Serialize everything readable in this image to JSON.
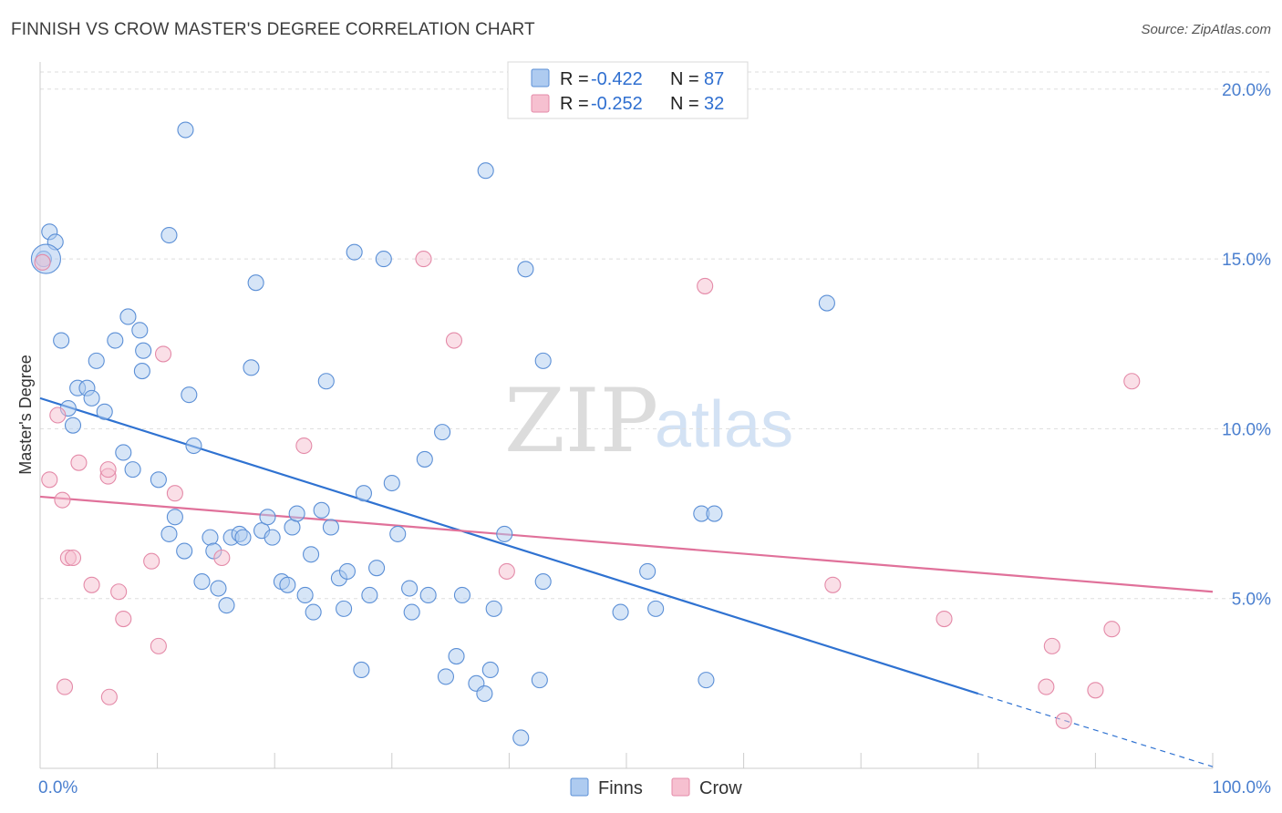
{
  "title": "FINNISH VS CROW MASTER'S DEGREE CORRELATION CHART",
  "source": "Source: ZipAtlas.com",
  "watermark": {
    "zip": "ZIP",
    "atlas": "atlas"
  },
  "colors": {
    "finns_fill": "#aecbf0",
    "finns_stroke": "#5b8fd6",
    "finns_line": "#2f72d1",
    "crow_fill": "#f6c0d0",
    "crow_stroke": "#e48aa8",
    "crow_line": "#e0719a",
    "grid": "#dddddd",
    "tick_label": "#4a7fcf"
  },
  "legend": {
    "rows": [
      {
        "series": "Finns",
        "r_label": "R = ",
        "r_value": "-0.422",
        "n_label": "N = ",
        "n_value": "87"
      },
      {
        "series": "Crow",
        "r_label": "R = ",
        "r_value": "-0.252",
        "n_label": "N = ",
        "n_value": "32"
      }
    ]
  },
  "chart_data": {
    "type": "scatter",
    "title": "FINNISH VS CROW MASTER'S DEGREE CORRELATION CHART",
    "xlabel": "",
    "ylabel": "Master's Degree",
    "xlim": [
      0,
      100
    ],
    "ylim": [
      0,
      20.8
    ],
    "x_tick_labels": [
      "0.0%",
      "100.0%"
    ],
    "y_ticks": [
      5,
      10,
      15,
      20
    ],
    "y_tick_labels": [
      "5.0%",
      "10.0%",
      "15.0%",
      "20.0%"
    ],
    "grid": "horizontal dashed",
    "legend_position": "top-center",
    "series": [
      {
        "name": "Finns",
        "points": [
          [
            0.3,
            15.0
          ],
          [
            0.8,
            15.8
          ],
          [
            1.3,
            15.5
          ],
          [
            1.8,
            12.6
          ],
          [
            3.2,
            11.2
          ],
          [
            4.0,
            11.2
          ],
          [
            2.4,
            10.6
          ],
          [
            2.8,
            10.1
          ],
          [
            4.4,
            10.9
          ],
          [
            5.5,
            10.5
          ],
          [
            4.8,
            12.0
          ],
          [
            6.4,
            12.6
          ],
          [
            7.5,
            13.3
          ],
          [
            8.5,
            12.9
          ],
          [
            8.8,
            12.3
          ],
          [
            8.7,
            11.7
          ],
          [
            12.4,
            18.8
          ],
          [
            11.0,
            15.7
          ],
          [
            7.1,
            9.3
          ],
          [
            7.9,
            8.8
          ],
          [
            10.1,
            8.5
          ],
          [
            12.7,
            11.0
          ],
          [
            13.1,
            9.5
          ],
          [
            14.5,
            6.8
          ],
          [
            11.0,
            6.9
          ],
          [
            11.5,
            7.4
          ],
          [
            12.3,
            6.4
          ],
          [
            13.8,
            5.5
          ],
          [
            15.2,
            5.3
          ],
          [
            15.9,
            4.8
          ],
          [
            14.8,
            6.4
          ],
          [
            16.3,
            6.8
          ],
          [
            17.0,
            6.9
          ],
          [
            17.3,
            6.8
          ],
          [
            18.0,
            11.8
          ],
          [
            18.4,
            14.3
          ],
          [
            18.9,
            7.0
          ],
          [
            19.4,
            7.4
          ],
          [
            19.8,
            6.8
          ],
          [
            20.6,
            5.5
          ],
          [
            21.1,
            5.4
          ],
          [
            21.5,
            7.1
          ],
          [
            21.9,
            7.5
          ],
          [
            22.6,
            5.1
          ],
          [
            23.1,
            6.3
          ],
          [
            23.3,
            4.6
          ],
          [
            24.0,
            7.6
          ],
          [
            24.4,
            11.4
          ],
          [
            24.8,
            7.1
          ],
          [
            25.5,
            5.6
          ],
          [
            25.9,
            4.7
          ],
          [
            26.2,
            5.8
          ],
          [
            26.8,
            15.2
          ],
          [
            27.4,
            2.9
          ],
          [
            27.6,
            8.1
          ],
          [
            28.1,
            5.1
          ],
          [
            28.7,
            5.9
          ],
          [
            29.3,
            15.0
          ],
          [
            30.0,
            8.4
          ],
          [
            30.5,
            6.9
          ],
          [
            31.5,
            5.3
          ],
          [
            31.7,
            4.6
          ],
          [
            32.8,
            9.1
          ],
          [
            33.1,
            5.1
          ],
          [
            34.3,
            9.9
          ],
          [
            34.6,
            2.7
          ],
          [
            35.5,
            3.3
          ],
          [
            36.0,
            5.1
          ],
          [
            37.2,
            2.5
          ],
          [
            37.9,
            2.2
          ],
          [
            38.0,
            17.6
          ],
          [
            38.4,
            2.9
          ],
          [
            38.7,
            4.7
          ],
          [
            39.6,
            6.9
          ],
          [
            41.0,
            0.9
          ],
          [
            41.4,
            14.7
          ],
          [
            42.6,
            2.6
          ],
          [
            42.9,
            5.5
          ],
          [
            42.9,
            12.0
          ],
          [
            49.5,
            4.6
          ],
          [
            51.8,
            5.8
          ],
          [
            52.5,
            4.7
          ],
          [
            56.4,
            7.5
          ],
          [
            56.8,
            2.6
          ],
          [
            57.5,
            7.5
          ],
          [
            67.1,
            13.7
          ],
          [
            0.5,
            15.0
          ]
        ]
      },
      {
        "name": "Crow",
        "points": [
          [
            0.2,
            14.9
          ],
          [
            0.8,
            8.5
          ],
          [
            1.5,
            10.4
          ],
          [
            1.9,
            7.9
          ],
          [
            2.1,
            2.4
          ],
          [
            2.4,
            6.2
          ],
          [
            2.8,
            6.2
          ],
          [
            3.3,
            9.0
          ],
          [
            4.4,
            5.4
          ],
          [
            5.8,
            8.6
          ],
          [
            5.8,
            8.8
          ],
          [
            5.9,
            2.1
          ],
          [
            6.7,
            5.2
          ],
          [
            7.1,
            4.4
          ],
          [
            9.5,
            6.1
          ],
          [
            10.1,
            3.6
          ],
          [
            10.5,
            12.2
          ],
          [
            11.5,
            8.1
          ],
          [
            15.5,
            6.2
          ],
          [
            22.5,
            9.5
          ],
          [
            32.7,
            15.0
          ],
          [
            35.3,
            12.6
          ],
          [
            39.8,
            5.8
          ],
          [
            56.7,
            14.2
          ],
          [
            67.6,
            5.4
          ],
          [
            77.1,
            4.4
          ],
          [
            85.8,
            2.4
          ],
          [
            86.3,
            3.6
          ],
          [
            87.3,
            1.4
          ],
          [
            90.0,
            2.3
          ],
          [
            91.4,
            4.1
          ],
          [
            93.1,
            11.4
          ]
        ]
      }
    ],
    "trend_lines": [
      {
        "name": "Finns",
        "x": [
          0,
          80,
          100
        ],
        "y": [
          10.9,
          2.2,
          0.05
        ],
        "dashed_from_x": 80
      },
      {
        "name": "Crow",
        "x": [
          0,
          100
        ],
        "y": [
          8.0,
          5.2
        ]
      }
    ]
  },
  "bottom_legend": [
    {
      "label": "Finns"
    },
    {
      "label": "Crow"
    }
  ]
}
